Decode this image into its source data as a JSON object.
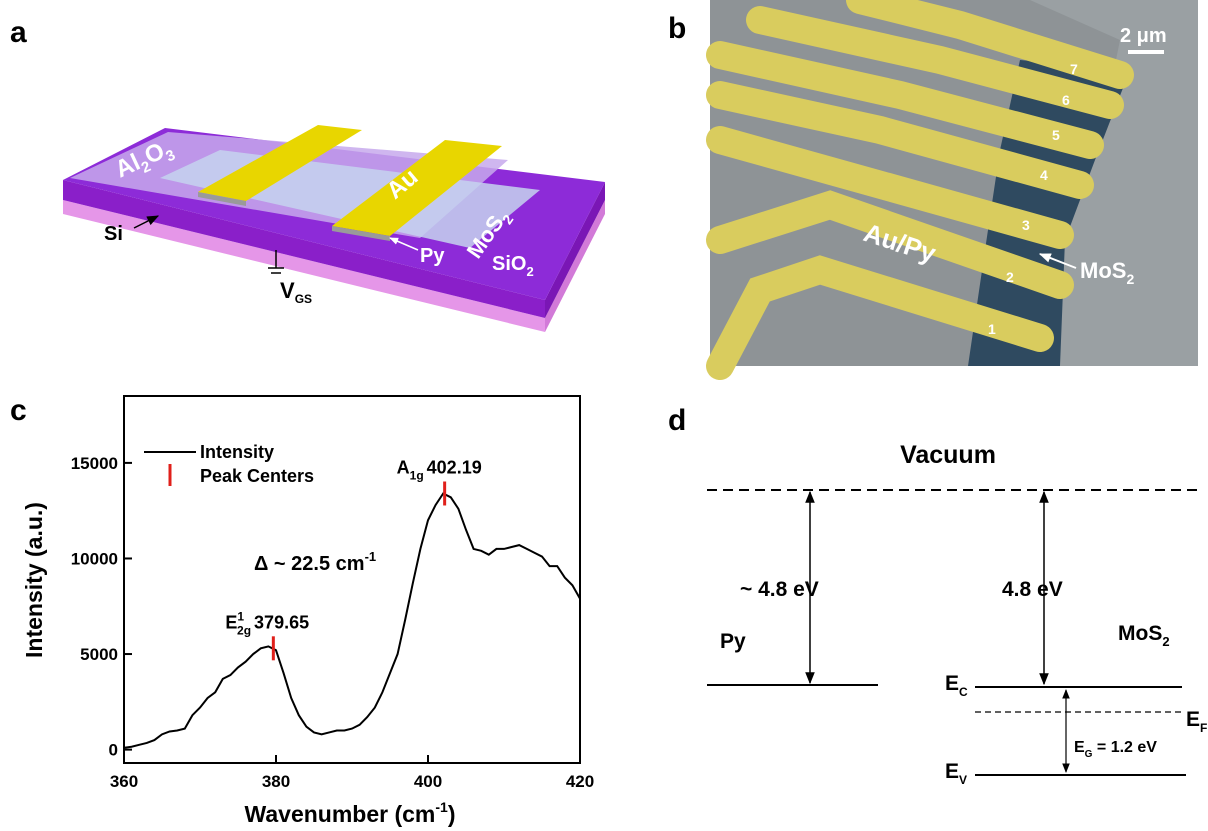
{
  "panel_a": {
    "label": "a",
    "al": "Al",
    "al_sub": "2",
    "o": "O",
    "o_sub": "3",
    "au": "Au",
    "mos": "MoS",
    "mos_sub": "2",
    "si": "Si",
    "py": "Py",
    "sio": "SiO",
    "sio_sub": "2",
    "v": "V",
    "v_sub": "GS"
  },
  "panel_b": {
    "label": "b",
    "scale_bar": "2 μm",
    "electrodes": [
      "1",
      "2",
      "3",
      "4",
      "5",
      "6",
      "7"
    ],
    "au_py": "Au/Py",
    "mos": "MoS",
    "mos_sub": "2"
  },
  "chart_data": {
    "type": "line",
    "panel_label": "c",
    "x_label": "Wavenumber (cm",
    "x_label_sup": "-1",
    "x_label_end": ")",
    "y_label": "Intensity (a.u.)",
    "xlim": [
      360,
      420
    ],
    "xticks": [
      360,
      380,
      400,
      420
    ],
    "ylim": [
      -700,
      18500
    ],
    "yticks": [
      0,
      5000,
      10000,
      15000
    ],
    "legend": "upper left",
    "series": [
      {
        "name": "Intensity",
        "color": "#000000",
        "x": [
          360,
          361,
          362,
          363,
          364,
          365,
          366,
          367,
          368,
          369,
          370,
          371,
          372,
          373,
          374,
          375,
          376,
          377,
          378,
          379,
          380,
          381,
          382,
          383,
          384,
          385,
          386,
          387,
          388,
          389,
          390,
          391,
          392,
          393,
          394,
          395,
          396,
          397,
          398,
          399,
          400,
          401,
          402,
          403,
          404,
          405,
          406,
          407,
          408,
          409,
          410,
          411,
          412,
          413,
          414,
          415,
          416,
          417,
          418,
          419,
          420
        ],
        "values": [
          100,
          150,
          250,
          350,
          500,
          800,
          950,
          1000,
          1100,
          1800,
          2200,
          2700,
          3000,
          3700,
          3900,
          4300,
          4600,
          5000,
          5300,
          5400,
          5200,
          4000,
          2700,
          1800,
          1200,
          900,
          800,
          900,
          1000,
          1000,
          1100,
          1300,
          1700,
          2200,
          3000,
          4000,
          5000,
          6800,
          8700,
          10500,
          12000,
          12800,
          13400,
          13200,
          12600,
          11500,
          10500,
          10400,
          10200,
          10500,
          10500,
          10600,
          10700,
          10500,
          10300,
          10100,
          9600,
          9600,
          9000,
          8600,
          7900
        ]
      },
      {
        "name": "Peak Centers",
        "color": "#e0201b",
        "x": [
          379.65,
          402.19
        ],
        "values": [
          5300,
          13400
        ]
      }
    ],
    "peak_labels": [
      {
        "symbol": "E",
        "sup": "1",
        "sub": "2g"
      },
      {
        "symbol": "A",
        "sub": "1g"
      }
    ],
    "delta_label": "Δ ~ 22.5 cm",
    "delta_sup": "-1"
  },
  "panel_d": {
    "label": "d",
    "vacuum": "Vacuum",
    "py_work": "~ 4.8 eV",
    "mos_affinity": "4.8 eV",
    "py": "Py",
    "mos": "MoS",
    "mos_sub": "2",
    "ec": "E",
    "ec_sub": "C",
    "ef": "E",
    "ef_sub": "F",
    "ev": "E",
    "ev_sub": "V",
    "eg": "E",
    "eg_sub": "G",
    "eg_value": " = 1.2 eV"
  }
}
